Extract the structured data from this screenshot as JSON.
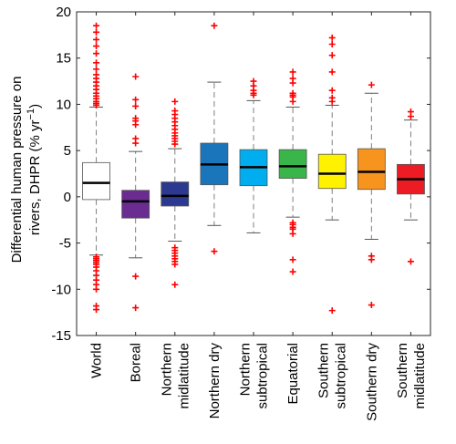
{
  "chart_data": {
    "type": "boxplot",
    "title": "",
    "xlabel": "",
    "ylabel_lines": [
      "Differential human pressure on",
      "rivers, DHPR (% yr"
    ],
    "ylabel_superscript": "−1",
    "ylabel_suffix": ")",
    "ylim": [
      -15,
      20
    ],
    "yticks": [
      -15,
      -10,
      -5,
      0,
      5,
      10,
      15,
      20
    ],
    "grid": false,
    "legend": "none",
    "categories": [
      "World",
      "Boreal",
      "Northern midlatitude",
      "Northern dry",
      "Northern subtropical",
      "Equatorial",
      "Southern subtropical",
      "Southern dry",
      "Southern midlatitude"
    ],
    "category_label_lines": [
      [
        "World"
      ],
      [
        "Boreal"
      ],
      [
        "Northern",
        "midlatitude"
      ],
      [
        "Northern dry"
      ],
      [
        "Northern",
        "subtropical"
      ],
      [
        "Equatorial"
      ],
      [
        "Southern",
        "subtropical"
      ],
      [
        "Southern dry"
      ],
      [
        "Southern",
        "midlatitude"
      ]
    ],
    "colors": [
      "#ffffff",
      "#6a2c91",
      "#2b3990",
      "#1b75bb",
      "#00aeef",
      "#39b54a",
      "#fff200",
      "#f7941d",
      "#ed1c24"
    ],
    "median_color": "#000000",
    "outlier_color": "#ff0000",
    "series": [
      {
        "q1": -0.3,
        "median": 1.5,
        "q3": 3.7,
        "whisker_low": -6.3,
        "whisker_high": 9.7,
        "outliers": [
          18.5,
          17.8,
          17.0,
          16.3,
          15.5,
          14.5,
          13.8,
          13.2,
          12.8,
          12.4,
          12.0,
          11.6,
          11.2,
          10.9,
          10.6,
          10.3,
          10.1,
          9.9,
          -6.5,
          -6.7,
          -6.9,
          -7.1,
          -7.3,
          -7.6,
          -8.0,
          -8.5,
          -9.0,
          -9.5,
          -10.0,
          -11.8,
          -12.2
        ]
      },
      {
        "q1": -2.3,
        "median": -0.5,
        "q3": 0.7,
        "whisker_low": -6.6,
        "whisker_high": 4.9,
        "outliers": [
          13.0,
          10.5,
          9.8,
          8.5,
          8.2,
          7.8,
          6.3,
          5.8,
          -8.6,
          -12.0
        ]
      },
      {
        "q1": -1.0,
        "median": 0.1,
        "q3": 1.6,
        "whisker_low": -4.8,
        "whisker_high": 5.2,
        "outliers": [
          10.3,
          9.3,
          8.9,
          8.5,
          8.1,
          7.7,
          7.3,
          6.9,
          6.6,
          6.3,
          6.0,
          5.7,
          -5.5,
          -5.8,
          -6.1,
          -6.4,
          -6.7,
          -7.0,
          -7.3,
          -9.5
        ]
      },
      {
        "q1": 1.3,
        "median": 3.5,
        "q3": 5.8,
        "whisker_low": -3.1,
        "whisker_high": 12.4,
        "outliers": [
          18.5,
          -5.9
        ]
      },
      {
        "q1": 1.2,
        "median": 3.2,
        "q3": 5.1,
        "whisker_low": -3.9,
        "whisker_high": 10.4,
        "outliers": [
          12.5,
          12.0,
          11.5,
          11.2,
          11.0
        ]
      },
      {
        "q1": 2.0,
        "median": 3.3,
        "q3": 5.1,
        "whisker_low": -2.2,
        "whisker_high": 9.7,
        "outliers": [
          13.5,
          12.8,
          12.3,
          11.2,
          11.0,
          10.8,
          10.3,
          -2.8,
          -3.0,
          -3.3,
          -3.5,
          -4.0,
          -6.8,
          -8.1
        ]
      },
      {
        "q1": 0.9,
        "median": 2.5,
        "q3": 4.6,
        "whisker_low": -2.5,
        "whisker_high": 9.9,
        "outliers": [
          17.2,
          16.5,
          15.3,
          13.5,
          11.5,
          10.7,
          10.3,
          -12.3
        ]
      },
      {
        "q1": 0.8,
        "median": 2.7,
        "q3": 5.2,
        "whisker_low": -4.6,
        "whisker_high": 11.2,
        "outliers": [
          12.1,
          -6.4,
          -6.8,
          -11.7
        ]
      },
      {
        "q1": 0.3,
        "median": 1.9,
        "q3": 3.5,
        "whisker_low": -2.5,
        "whisker_high": 8.3,
        "outliers": [
          9.2,
          8.7,
          -7.0
        ]
      }
    ]
  }
}
